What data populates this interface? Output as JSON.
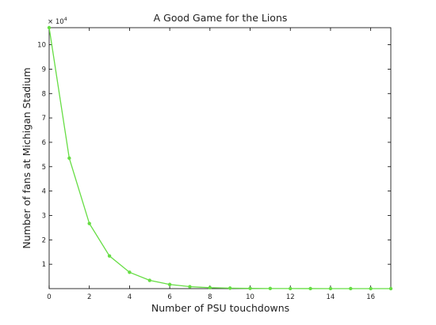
{
  "chart_data": {
    "type": "line",
    "title": "A Good Game for the Lions",
    "xlabel": "Number of PSU touchdowns",
    "ylabel": "Number of fans at Michigan Stadium",
    "y_exponent_label": "× 10",
    "y_exponent_power": "4",
    "xlim": [
      0,
      17
    ],
    "ylim": [
      0,
      10.7
    ],
    "x_ticks": [
      0,
      2,
      4,
      6,
      8,
      10,
      12,
      14,
      16
    ],
    "y_ticks": [
      1,
      2,
      3,
      4,
      5,
      6,
      7,
      8,
      9,
      10
    ],
    "grid": false,
    "series": [
      {
        "color": "#66dd44",
        "marker": "dot",
        "x": [
          0,
          1,
          2,
          3,
          4,
          5,
          6,
          7,
          8,
          9,
          10,
          11,
          12,
          13,
          14,
          15,
          16,
          17
        ],
        "y": [
          10.7,
          5.35,
          2.67,
          1.34,
          0.67,
          0.34,
          0.17,
          0.08,
          0.04,
          0.02,
          0.01,
          0.005,
          0.003,
          0.002,
          0.001,
          0.0005,
          0.0003,
          0.0001
        ]
      }
    ]
  }
}
